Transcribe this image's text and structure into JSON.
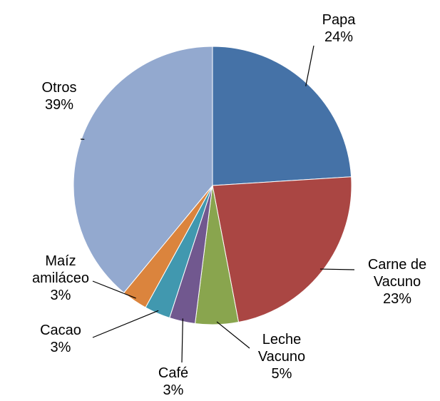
{
  "chart_data": {
    "type": "pie",
    "categories": [
      "Papa",
      "Carne de Vacuno",
      "Leche Vacuno",
      "Café",
      "Cacao",
      "Maíz amiláceo",
      "Otros"
    ],
    "values": [
      24,
      23,
      5,
      3,
      3,
      3,
      39
    ],
    "value_labels": [
      "24%",
      "23%",
      "5%",
      "3%",
      "3%",
      "3%",
      "39%"
    ],
    "colors": [
      "#4572a7",
      "#aa4643",
      "#89a54e",
      "#71588f",
      "#4198af",
      "#db843d",
      "#93a9cf"
    ]
  }
}
